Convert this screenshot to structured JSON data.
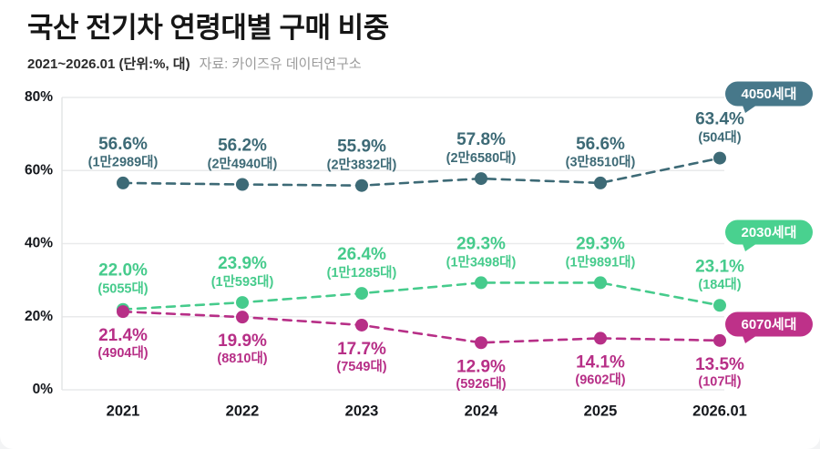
{
  "header": {
    "title": "국산 전기차 연령대별 구매 비중",
    "subtitle": "2021~2026.01 (단위:%, 대)",
    "source": "자료: 카이즈유 데이터연구소"
  },
  "chart_data": {
    "type": "line",
    "x": [
      "2021",
      "2022",
      "2023",
      "2024",
      "2025",
      "2026.01"
    ],
    "ylabel": "%",
    "ylim": [
      0,
      80
    ],
    "ytick_step": 20,
    "ytick_suffix": "%",
    "grid": true,
    "line_style": "dashed",
    "legend_position": "right-badges",
    "series": [
      {
        "name": "4050세대",
        "values": [
          56.6,
          56.2,
          55.9,
          57.8,
          56.6,
          63.4
        ],
        "counts": [
          "(1만2989대)",
          "(2만4940대)",
          "(2만3832대)",
          "(2만6580대)",
          "(3만8510대)",
          "(504대)"
        ],
        "color": "#3d6a76",
        "badge_color": "#47788a",
        "label_position": "above"
      },
      {
        "name": "2030세대",
        "values": [
          22.0,
          23.9,
          26.4,
          29.3,
          29.3,
          23.1
        ],
        "counts": [
          "(5055대)",
          "(1만593대)",
          "(1만1285대)",
          "(1만3498대)",
          "(1만9891대)",
          "(184대)"
        ],
        "color": "#46cb8c",
        "badge_color": "#49d18f",
        "label_position": "above"
      },
      {
        "name": "6070세대",
        "values": [
          21.4,
          19.9,
          17.7,
          12.9,
          14.1,
          13.5
        ],
        "counts": [
          "(4904대)",
          "(8810대)",
          "(7549대)",
          "(5926대)",
          "(9602대)",
          "(107대)"
        ],
        "color": "#b72f87",
        "badge_color": "#be3189",
        "label_position": "below"
      }
    ]
  }
}
